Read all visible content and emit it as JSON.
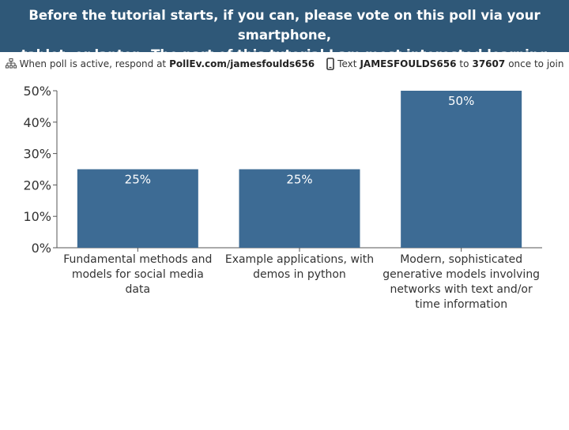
{
  "header": {
    "title_line1": "Before the tutorial starts, if you can, please vote on this poll via your smartphone,",
    "title_line2": "tablet, or laptop. The part of this tutorial I am most interested learning about is:"
  },
  "instructions": {
    "web_prefix": "When poll is active, respond at",
    "web_url": "PollEv.com/jamesfoulds656",
    "text_prefix": "Text",
    "text_code": "JAMESFOULDS656",
    "text_to": "to",
    "text_number": "37607",
    "text_suffix": "once to join",
    "web_icon": "network-icon",
    "phone_icon": "phone-icon"
  },
  "colors": {
    "header_bg": "#2f5878",
    "bar": "#3d6b94",
    "axis": "#555555"
  },
  "chart_data": {
    "type": "bar",
    "categories": [
      [
        "Fundamental methods and",
        "models for social media",
        "data"
      ],
      [
        "Example applications, with",
        "demos in python"
      ],
      [
        "Modern, sophisticated",
        "generative models involving",
        "networks with text and/or",
        "time information"
      ]
    ],
    "values": [
      25,
      25,
      50
    ],
    "value_labels": [
      "25%",
      "25%",
      "50%"
    ],
    "yticks": [
      "0%",
      "10%",
      "20%",
      "30%",
      "40%",
      "50%"
    ],
    "ylim": [
      0,
      50
    ],
    "grid": false
  }
}
